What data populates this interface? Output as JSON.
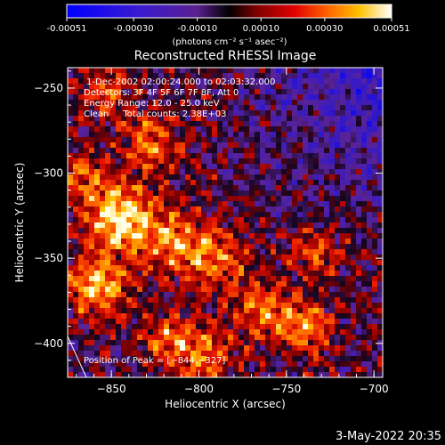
{
  "chart_data": {
    "type": "heatmap",
    "title": "Reconstructed RHESSI Image",
    "xlabel": "Heliocentric X (arcsec)",
    "ylabel": "Heliocentric Y (arcsec)",
    "xlim": [
      -875,
      -695
    ],
    "ylim": [
      -420,
      -238
    ],
    "x_ticks": [
      -850,
      -800,
      -750,
      -700
    ],
    "x_tick_labels": [
      "−850",
      "−800",
      "−750",
      "−700"
    ],
    "y_ticks": [
      -250,
      -300,
      -350,
      -400
    ],
    "y_tick_labels": [
      "−250",
      "−300",
      "−350",
      "−400"
    ],
    "colorbar": {
      "range": [
        -0.00051,
        0.00051
      ],
      "tick_labels": [
        "-0.00051",
        "-0.00030",
        "-0.00010",
        "0.00010",
        "0.00030",
        "0.00051"
      ],
      "unit_label": "(photons cm⁻² s⁻¹ asec⁻²)",
      "colors": [
        "#0000ff",
        "#5a1fa0",
        "#000000",
        "#a00000",
        "#ff3000",
        "#ffa000",
        "#ffffff"
      ]
    },
    "annotations": {
      "time_range": "1-Dec-2002 02:00:24.000 to 02:03:32.000",
      "detectors": "Detectors: 3F 4F 5F 6F 7F 8F, Att 0",
      "energy": "Energy Range: 12.0 - 25.0 keV",
      "clean": "Clean     Total counts: 2.38E+03",
      "peak": "Position of Peak = [−844,−327]"
    },
    "peak": [
      -844,
      -327
    ]
  },
  "footer": {
    "date": "3-May-2022 20:35"
  }
}
